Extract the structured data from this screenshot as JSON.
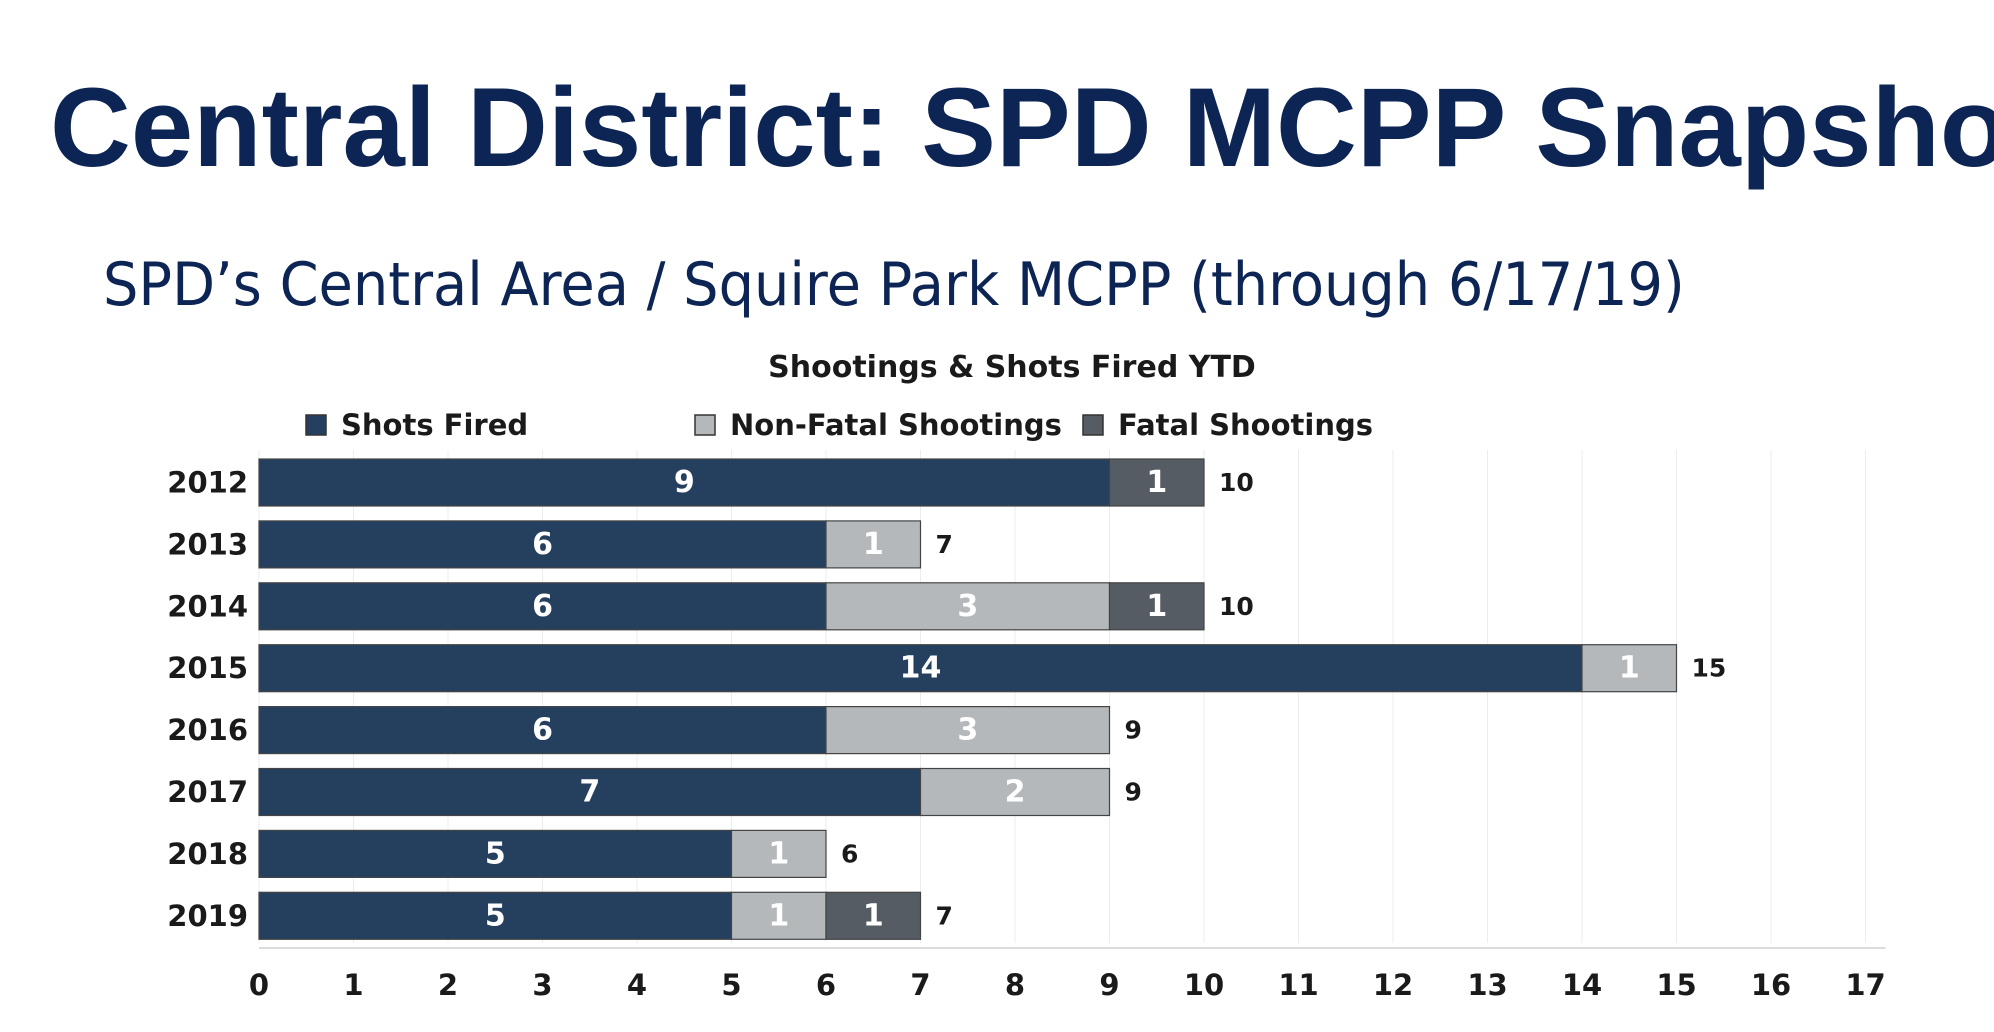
{
  "header": {
    "title": "Central District: SPD MCPP Snapshot",
    "subtitle": "SPD’s Central Area / Squire Park MCPP (through 6/17/19)"
  },
  "colors": {
    "title": "#0c2554",
    "shots_fired": "#253f5f",
    "non_fatal": "#b5b8bb",
    "fatal": "#565c63"
  },
  "chart_data": {
    "type": "bar",
    "orientation": "horizontal",
    "stacked": true,
    "title": "Shootings & Shots Fired YTD",
    "xlabel": "",
    "ylabel": "",
    "legend_position": "top",
    "grid": true,
    "xlim": [
      0,
      17
    ],
    "x_ticks": [
      "0",
      "1",
      "2",
      "3",
      "4",
      "5",
      "6",
      "7",
      "8",
      "9",
      "10",
      "11",
      "12",
      "13",
      "14",
      "15",
      "16",
      "17"
    ],
    "categories": [
      "2012",
      "2013",
      "2014",
      "2015",
      "2016",
      "2017",
      "2018",
      "2019"
    ],
    "series": [
      {
        "name": "Shots Fired",
        "color": "#253f5f",
        "values": [
          9,
          6,
          6,
          14,
          6,
          7,
          5,
          5
        ]
      },
      {
        "name": "Non-Fatal Shootings",
        "color": "#b5b8bb",
        "values": [
          0,
          1,
          3,
          1,
          3,
          2,
          1,
          1
        ]
      },
      {
        "name": "Fatal Shootings",
        "color": "#565c63",
        "values": [
          1,
          0,
          1,
          0,
          0,
          0,
          0,
          1
        ]
      }
    ],
    "totals": [
      10,
      7,
      10,
      15,
      9,
      9,
      6,
      7
    ]
  }
}
